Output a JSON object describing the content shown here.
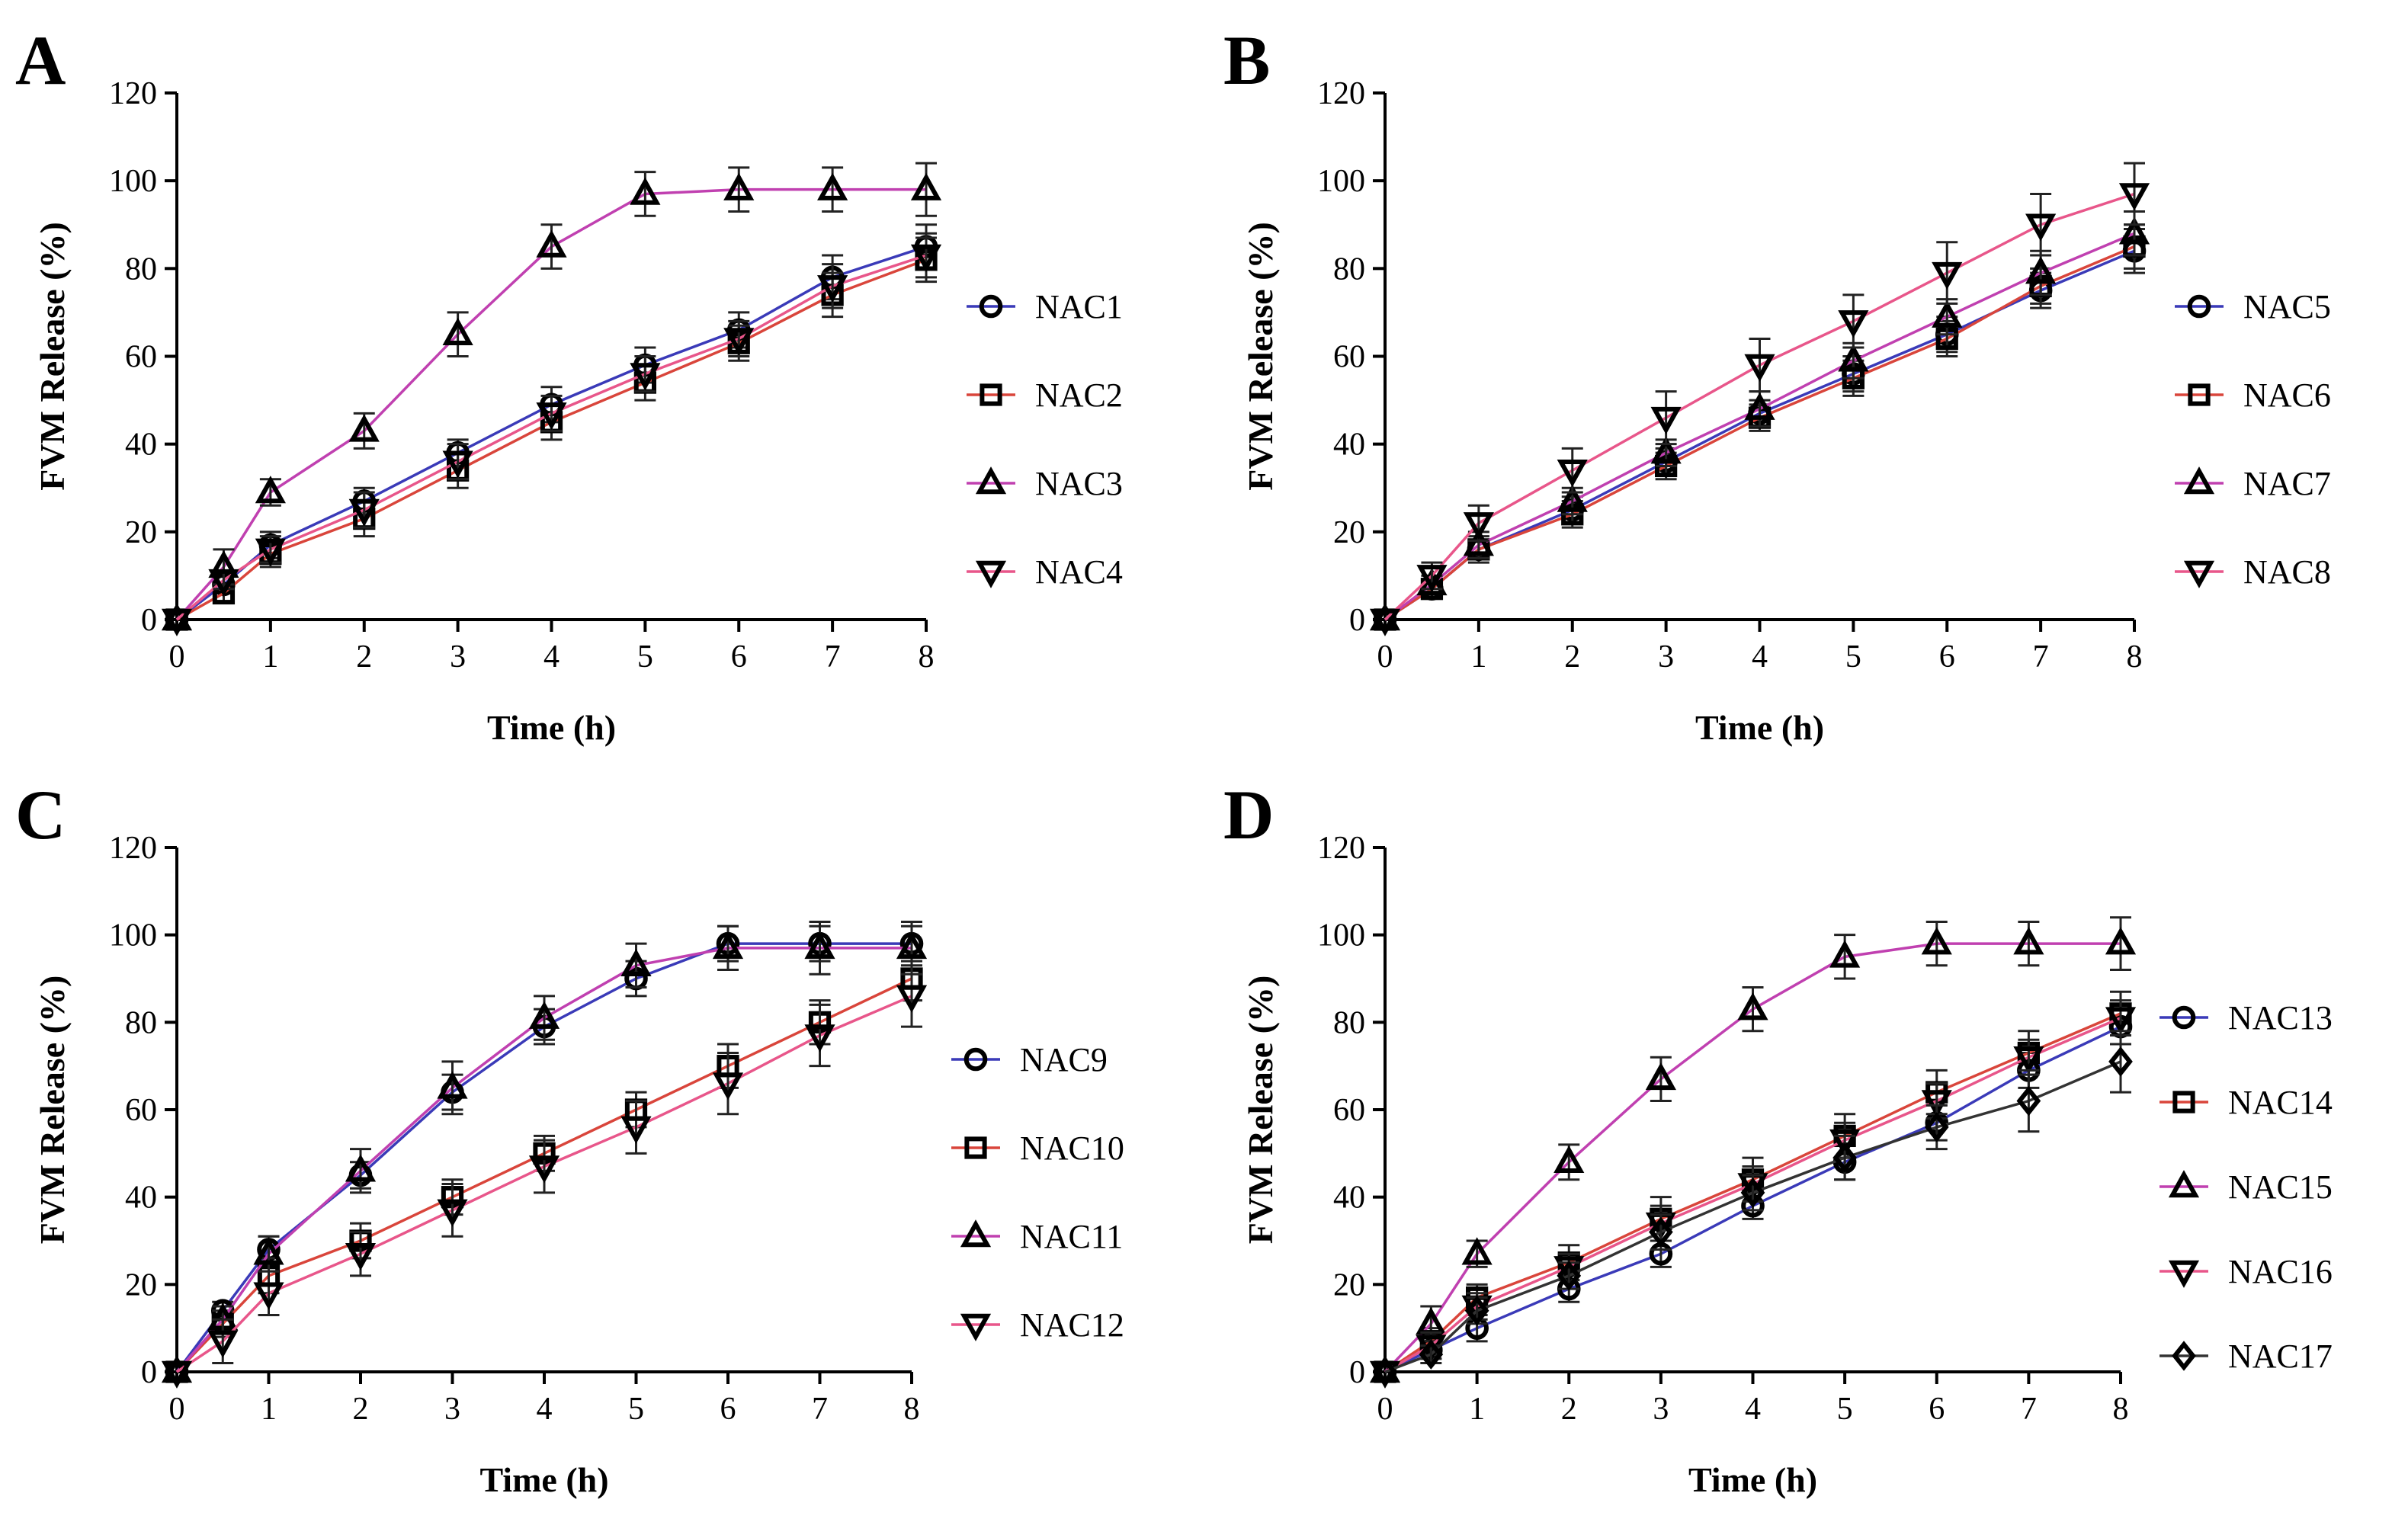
{
  "chart_data": [
    {
      "type": "line",
      "panel_label": "A",
      "xlabel": "Time (h)",
      "ylabel": "FVM Release (%)",
      "xlim": [
        0,
        8
      ],
      "ylim": [
        0,
        120
      ],
      "xticks": [
        0,
        1,
        2,
        3,
        4,
        5,
        6,
        7,
        8
      ],
      "yticks": [
        0,
        20,
        40,
        60,
        80,
        100,
        120
      ],
      "legend_position": "right",
      "x": [
        0,
        0.5,
        1,
        2,
        3,
        4,
        5,
        6,
        7,
        8
      ],
      "series": [
        {
          "name": "NAC1",
          "marker": "circle",
          "color": "#3a3ab8",
          "values": [
            0,
            8,
            17,
            27,
            38,
            49,
            58,
            66,
            78,
            85
          ],
          "errors": [
            0,
            2,
            3,
            3,
            3,
            4,
            4,
            4,
            5,
            5
          ]
        },
        {
          "name": "NAC2",
          "marker": "square",
          "color": "#d9453b",
          "values": [
            0,
            6,
            15,
            23,
            34,
            45,
            54,
            63,
            74,
            82
          ],
          "errors": [
            0,
            2,
            3,
            4,
            4,
            4,
            4,
            4,
            5,
            5
          ]
        },
        {
          "name": "NAC3",
          "marker": "triangle-up",
          "color": "#c040b0",
          "values": [
            0,
            12,
            29,
            43,
            65,
            85,
            97,
            98,
            98,
            98
          ],
          "errors": [
            0,
            4,
            3,
            4,
            5,
            5,
            5,
            5,
            5,
            6
          ]
        },
        {
          "name": "NAC4",
          "marker": "triangle-down",
          "color": "#e8568a",
          "values": [
            0,
            9,
            16,
            25,
            36,
            47,
            56,
            64,
            76,
            83
          ],
          "errors": [
            0,
            2,
            3,
            4,
            4,
            4,
            4,
            4,
            5,
            5
          ]
        }
      ]
    },
    {
      "type": "line",
      "panel_label": "B",
      "xlabel": "Time (h)",
      "ylabel": "FVM Release (%)",
      "xlim": [
        0,
        8
      ],
      "ylim": [
        0,
        120
      ],
      "xticks": [
        0,
        1,
        2,
        3,
        4,
        5,
        6,
        7,
        8
      ],
      "yticks": [
        0,
        20,
        40,
        60,
        80,
        100,
        120
      ],
      "legend_position": "right",
      "x": [
        0,
        0.5,
        1,
        2,
        3,
        4,
        5,
        6,
        7,
        8
      ],
      "series": [
        {
          "name": "NAC5",
          "marker": "circle",
          "color": "#3a3ab8",
          "values": [
            0,
            7,
            16,
            25,
            36,
            47,
            56,
            65,
            75,
            84
          ],
          "errors": [
            0,
            2,
            3,
            3,
            3,
            3,
            4,
            4,
            4,
            5
          ]
        },
        {
          "name": "NAC6",
          "marker": "square",
          "color": "#d9453b",
          "values": [
            0,
            7,
            16,
            24,
            35,
            46,
            55,
            64,
            76,
            85
          ],
          "errors": [
            0,
            2,
            2,
            3,
            3,
            3,
            4,
            4,
            4,
            5
          ]
        },
        {
          "name": "NAC7",
          "marker": "triangle-up",
          "color": "#c040b0",
          "values": [
            0,
            8,
            17,
            27,
            38,
            48,
            59,
            69,
            79,
            88
          ],
          "errors": [
            0,
            2,
            3,
            3,
            3,
            4,
            4,
            4,
            5,
            5
          ]
        },
        {
          "name": "NAC8",
          "marker": "triangle-down",
          "color": "#e8568a",
          "values": [
            0,
            10,
            22,
            34,
            46,
            58,
            68,
            79,
            90,
            97
          ],
          "errors": [
            0,
            3,
            4,
            5,
            6,
            6,
            6,
            7,
            7,
            7
          ]
        }
      ]
    },
    {
      "type": "line",
      "panel_label": "C",
      "xlabel": "Time (h)",
      "ylabel": "FVM Release (%)",
      "xlim": [
        0,
        8
      ],
      "ylim": [
        0,
        120
      ],
      "xticks": [
        0,
        1,
        2,
        3,
        4,
        5,
        6,
        7,
        8
      ],
      "yticks": [
        0,
        20,
        40,
        60,
        80,
        100,
        120
      ],
      "legend_position": "right",
      "x": [
        0,
        0.5,
        1,
        2,
        3,
        4,
        5,
        6,
        7,
        8
      ],
      "series": [
        {
          "name": "NAC9",
          "marker": "circle",
          "color": "#3a3ab8",
          "values": [
            0,
            14,
            28,
            45,
            64,
            79,
            90,
            98,
            98,
            98
          ],
          "errors": [
            0,
            2,
            3,
            3,
            4,
            4,
            4,
            4,
            4,
            4
          ]
        },
        {
          "name": "NAC10",
          "marker": "square",
          "color": "#d9453b",
          "values": [
            0,
            11,
            22,
            30,
            40,
            50,
            60,
            70,
            80,
            90
          ],
          "errors": [
            0,
            3,
            4,
            4,
            4,
            4,
            4,
            5,
            5,
            5
          ]
        },
        {
          "name": "NAC11",
          "marker": "triangle-up",
          "color": "#c040b0",
          "values": [
            0,
            12,
            27,
            46,
            65,
            81,
            93,
            97,
            97,
            97
          ],
          "errors": [
            0,
            3,
            4,
            5,
            6,
            5,
            5,
            5,
            6,
            6
          ]
        },
        {
          "name": "NAC12",
          "marker": "triangle-down",
          "color": "#e8568a",
          "values": [
            0,
            7,
            18,
            27,
            37,
            47,
            56,
            66,
            77,
            86
          ],
          "errors": [
            0,
            5,
            5,
            5,
            6,
            6,
            6,
            7,
            7,
            7
          ]
        }
      ]
    },
    {
      "type": "line",
      "panel_label": "D",
      "xlabel": "Time (h)",
      "ylabel": "FVM Release (%)",
      "xlim": [
        0,
        8
      ],
      "ylim": [
        0,
        120
      ],
      "xticks": [
        0,
        1,
        2,
        3,
        4,
        5,
        6,
        7,
        8
      ],
      "yticks": [
        0,
        20,
        40,
        60,
        80,
        100,
        120
      ],
      "legend_position": "right",
      "x": [
        0,
        0.5,
        1,
        2,
        3,
        4,
        5,
        6,
        7,
        8
      ],
      "series": [
        {
          "name": "NAC13",
          "marker": "circle",
          "color": "#3a3ab8",
          "values": [
            0,
            5,
            10,
            19,
            27,
            38,
            48,
            57,
            69,
            79
          ],
          "errors": [
            0,
            2,
            3,
            3,
            3,
            3,
            4,
            4,
            4,
            4
          ]
        },
        {
          "name": "NAC14",
          "marker": "square",
          "color": "#d9453b",
          "values": [
            0,
            7,
            17,
            25,
            35,
            44,
            54,
            64,
            73,
            82
          ],
          "errors": [
            0,
            3,
            3,
            4,
            5,
            5,
            5,
            5,
            5,
            5
          ]
        },
        {
          "name": "NAC15",
          "marker": "triangle-up",
          "color": "#c040b0",
          "values": [
            0,
            11,
            27,
            48,
            67,
            83,
            95,
            98,
            98,
            98
          ],
          "errors": [
            0,
            4,
            3,
            4,
            5,
            5,
            5,
            5,
            5,
            6
          ]
        },
        {
          "name": "NAC16",
          "marker": "triangle-down",
          "color": "#e8568a",
          "values": [
            0,
            6,
            15,
            24,
            34,
            43,
            53,
            62,
            72,
            81
          ],
          "errors": [
            0,
            3,
            3,
            3,
            4,
            4,
            4,
            4,
            4,
            4
          ]
        },
        {
          "name": "NAC17",
          "marker": "diamond",
          "color": "#333333",
          "values": [
            0,
            4,
            14,
            22,
            32,
            41,
            49,
            56,
            62,
            71
          ],
          "errors": [
            0,
            2,
            3,
            3,
            4,
            4,
            5,
            5,
            7,
            7
          ]
        }
      ]
    }
  ]
}
